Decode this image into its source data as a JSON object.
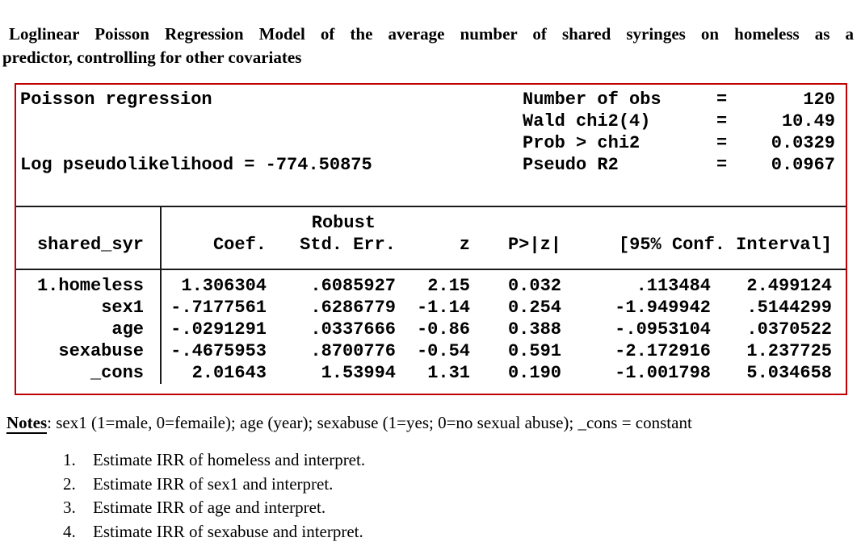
{
  "title": {
    "line1": "Loglinear Poisson Regression Model of the average number of shared syringes on homeless as a",
    "line2": "predictor, controlling for other covariates"
  },
  "stata": {
    "model_label": "Poisson regression",
    "loglik_label": "Log pseudolikelihood = -774.50875",
    "stats": [
      {
        "label": "Number of obs",
        "eq": "=",
        "value": "120"
      },
      {
        "label": "Wald chi2(4)",
        "eq": "=",
        "value": "10.49"
      },
      {
        "label": "Prob > chi2",
        "eq": "=",
        "value": "0.0329"
      },
      {
        "label": "Pseudo R2",
        "eq": "=",
        "value": "0.0967"
      }
    ],
    "table": {
      "depvar": "shared_syr",
      "robust_label": "Robust",
      "headers": {
        "coef": "Coef.",
        "stderr": "Std. Err.",
        "z": "z",
        "p": "P>|z|",
        "ci": "[95% Conf. Interval]"
      },
      "rows": [
        {
          "var": "1.homeless",
          "coef": "1.306304",
          "stderr": ".6085927",
          "z": "2.15",
          "p": "0.032",
          "ci_lo": ".113484",
          "ci_hi": "2.499124"
        },
        {
          "var": "sex1",
          "coef": "-.7177561",
          "stderr": ".6286779",
          "z": "-1.14",
          "p": "0.254",
          "ci_lo": "-1.949942",
          "ci_hi": ".5144299"
        },
        {
          "var": "age",
          "coef": "-.0291291",
          "stderr": ".0337666",
          "z": "-0.86",
          "p": "0.388",
          "ci_lo": "-.0953104",
          "ci_hi": ".0370522"
        },
        {
          "var": "sexabuse",
          "coef": "-.4675953",
          "stderr": ".8700776",
          "z": "-0.54",
          "p": "0.591",
          "ci_lo": "-2.172916",
          "ci_hi": "1.237725"
        },
        {
          "var": "_cons",
          "coef": "2.01643",
          "stderr": "1.53994",
          "z": "1.31",
          "p": "0.190",
          "ci_lo": "-1.001798",
          "ci_hi": "5.034658"
        }
      ]
    }
  },
  "notes": {
    "label": "Notes",
    "text": ": sex1 (1=male, 0=femaile); age (year); sexabuse (1=yes; 0=no sexual abuse); _cons = constant"
  },
  "questions": [
    {
      "num": "1.",
      "text": "Estimate IRR of homeless and interpret."
    },
    {
      "num": "2.",
      "text": "Estimate IRR of sex1 and interpret."
    },
    {
      "num": "3.",
      "text": "Estimate IRR of age and interpret."
    },
    {
      "num": "4.",
      "text": "Estimate IRR of sexabuse and interpret."
    }
  ],
  "colors": {
    "box_border": "#c00000",
    "rule": "#1a1a1a"
  }
}
